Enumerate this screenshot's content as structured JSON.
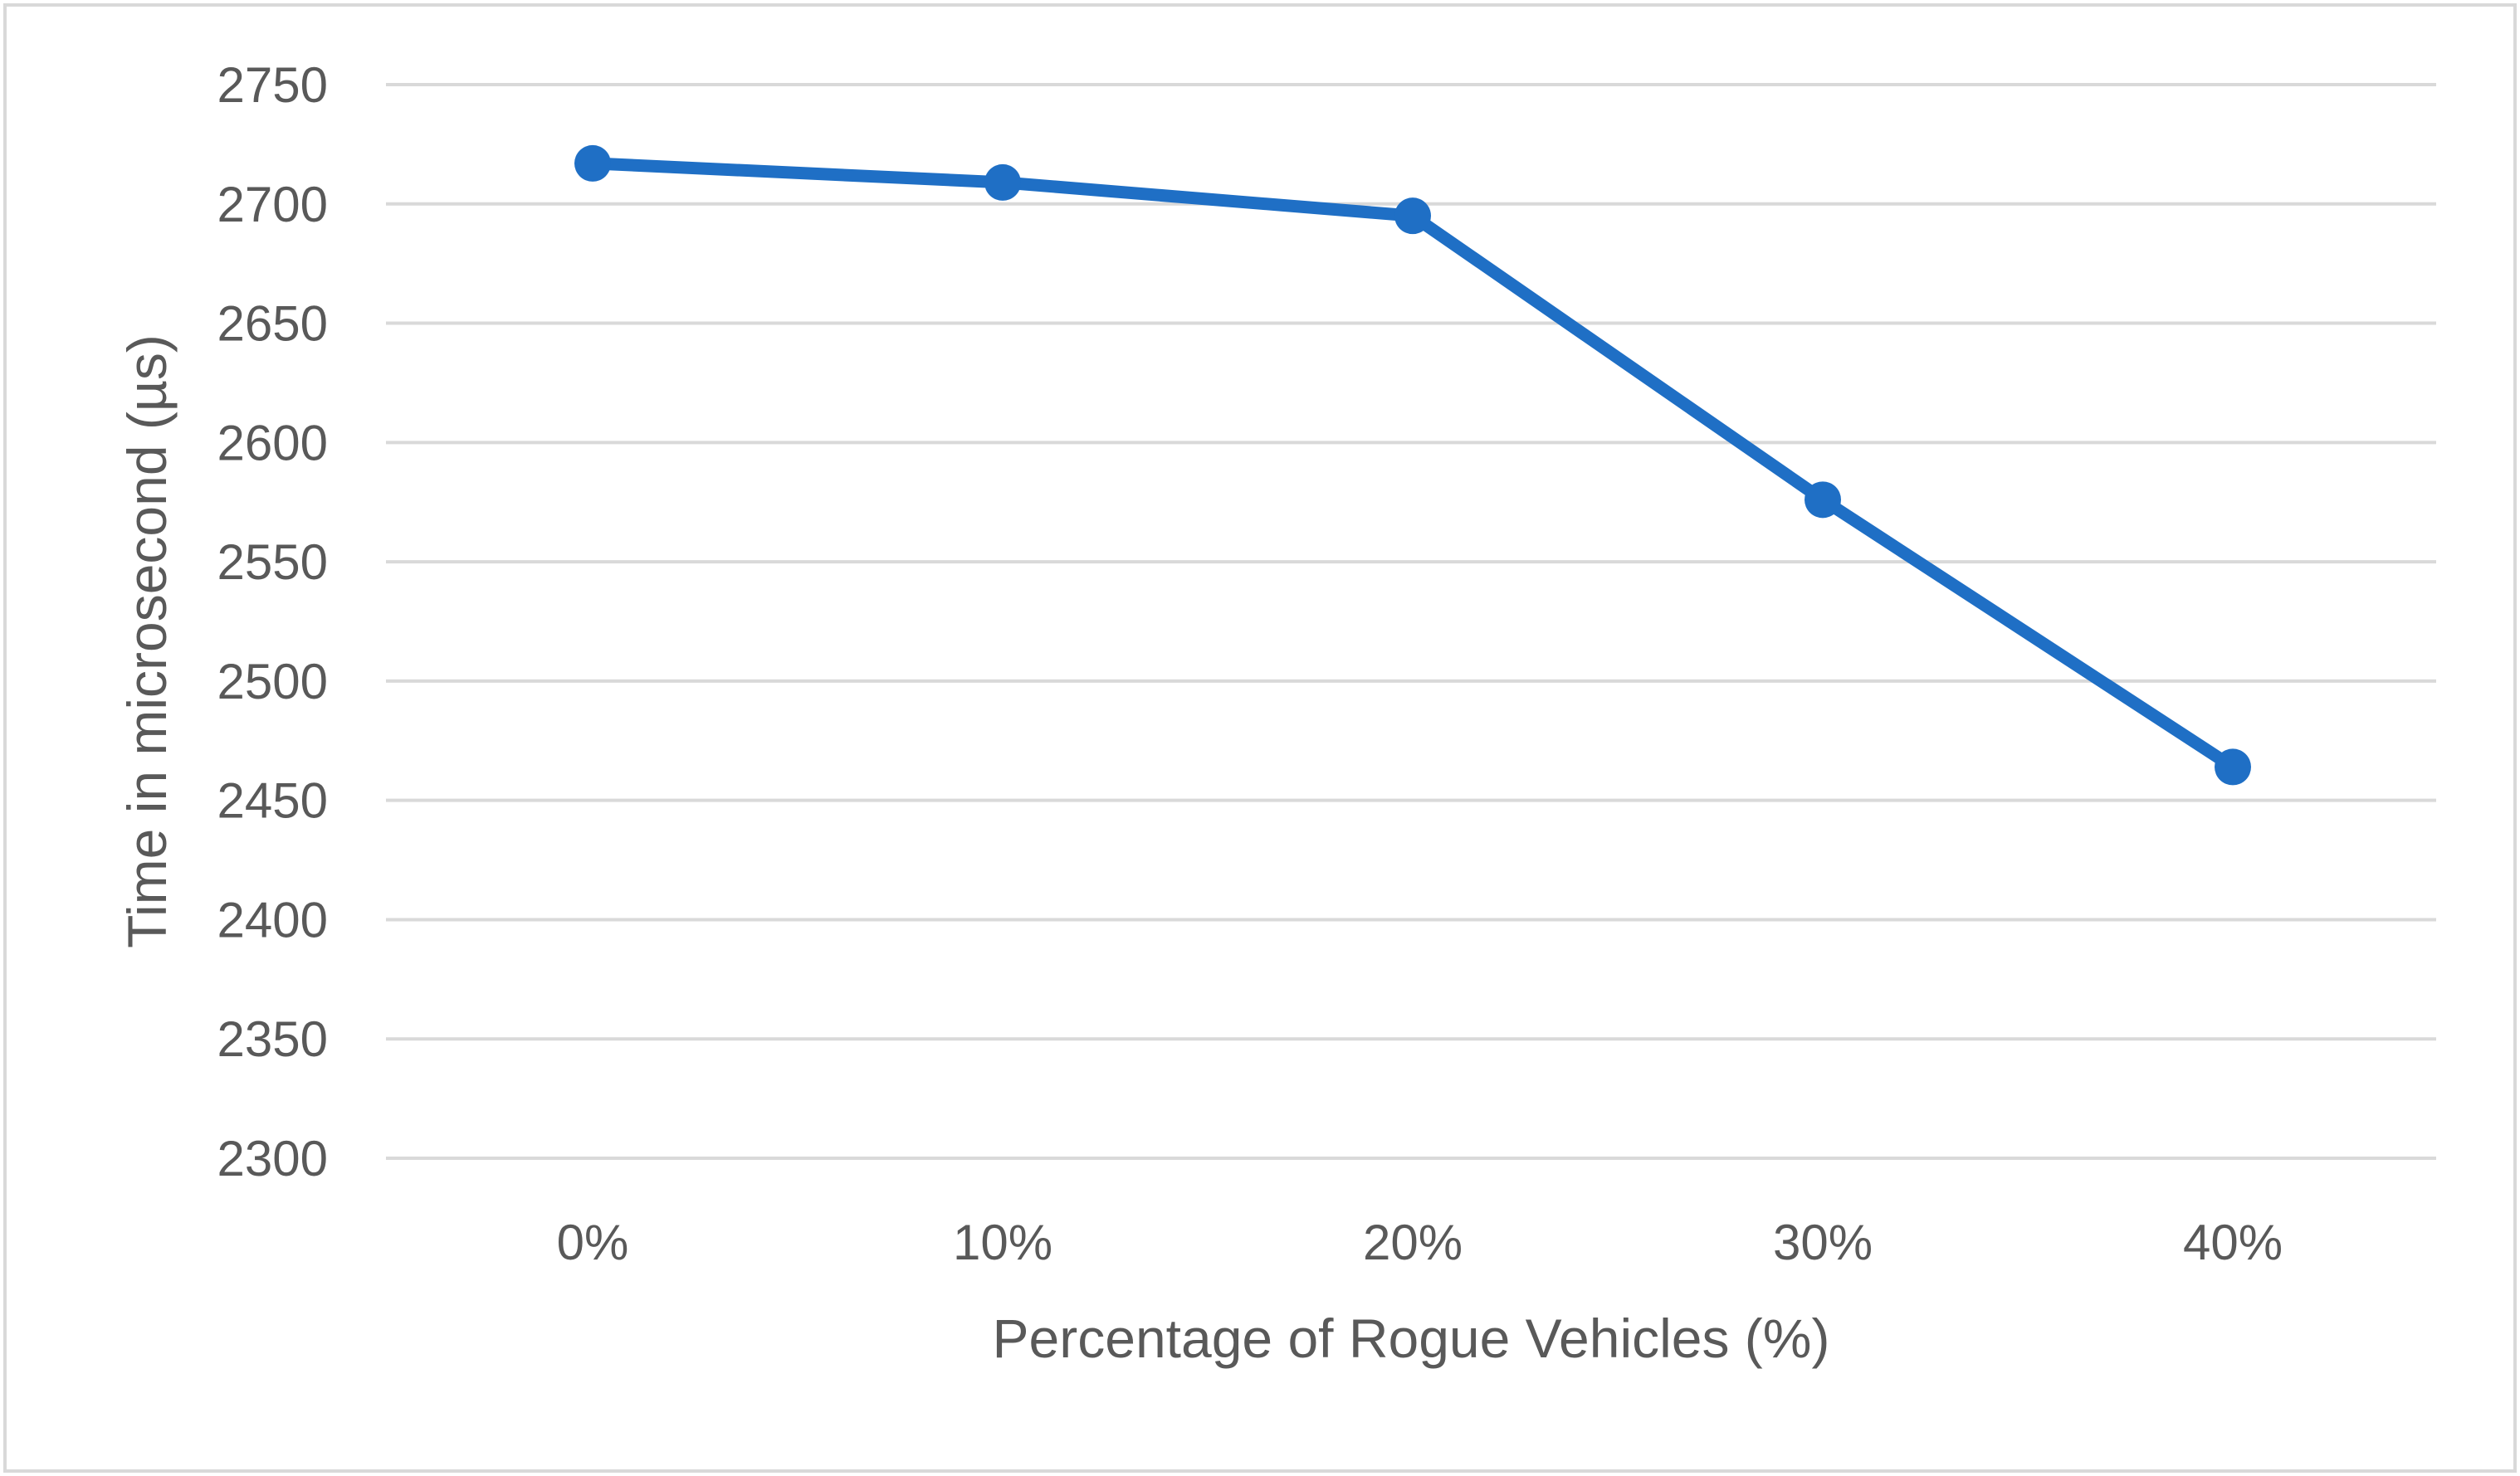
{
  "chart_data": {
    "type": "line",
    "title": "",
    "xlabel": "Percentage of Rogue Vehicles (%)",
    "ylabel": "Time in microsecond (µs)",
    "categories": [
      "0%",
      "10%",
      "20%",
      "30%",
      "40%"
    ],
    "series": [
      {
        "values": [
          2717,
          2709,
          2695,
          2576,
          2464
        ],
        "color": "#1f6fc5"
      }
    ],
    "ylim": [
      2300,
      2750
    ],
    "yticks": [
      2300,
      2350,
      2400,
      2450,
      2500,
      2550,
      2600,
      2650,
      2700,
      2750
    ],
    "grid": true,
    "legend": "none",
    "marker": "circle"
  }
}
